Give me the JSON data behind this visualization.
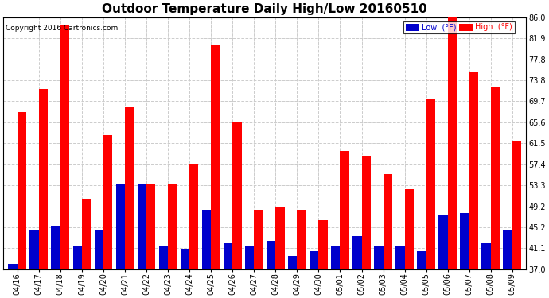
{
  "title": "Outdoor Temperature Daily High/Low 20160510",
  "copyright": "Copyright 2016 Cartronics.com",
  "legend_low": "Low  (°F)",
  "legend_high": "High  (°F)",
  "categories": [
    "04/16",
    "04/17",
    "04/18",
    "04/19",
    "04/20",
    "04/21",
    "04/22",
    "04/23",
    "04/24",
    "04/25",
    "04/26",
    "04/27",
    "04/28",
    "04/29",
    "04/30",
    "05/01",
    "05/02",
    "05/03",
    "05/04",
    "05/05",
    "05/06",
    "05/07",
    "05/08",
    "05/09"
  ],
  "high_values": [
    67.5,
    72.0,
    84.5,
    50.5,
    63.0,
    68.5,
    53.5,
    53.5,
    57.5,
    80.5,
    65.5,
    48.5,
    49.2,
    48.5,
    46.5,
    60.0,
    59.0,
    55.5,
    52.5,
    70.0,
    86.0,
    75.5,
    72.5,
    62.0
  ],
  "low_values": [
    38.0,
    44.5,
    45.5,
    41.5,
    44.5,
    53.5,
    53.5,
    41.5,
    41.0,
    48.5,
    42.0,
    41.5,
    42.5,
    39.5,
    40.5,
    41.5,
    43.5,
    41.5,
    41.5,
    40.5,
    47.5,
    48.0,
    42.0,
    44.5
  ],
  "ylim": [
    37.0,
    86.0
  ],
  "yticks": [
    37.0,
    41.1,
    45.2,
    49.2,
    53.3,
    57.4,
    61.5,
    65.6,
    69.7,
    73.8,
    77.8,
    81.9,
    86.0
  ],
  "high_color": "#ff0000",
  "low_color": "#0000cc",
  "background_color": "#ffffff",
  "plot_background": "#ffffff",
  "grid_color": "#cccccc",
  "title_fontsize": 11,
  "tick_fontsize": 7,
  "bar_width": 0.42
}
